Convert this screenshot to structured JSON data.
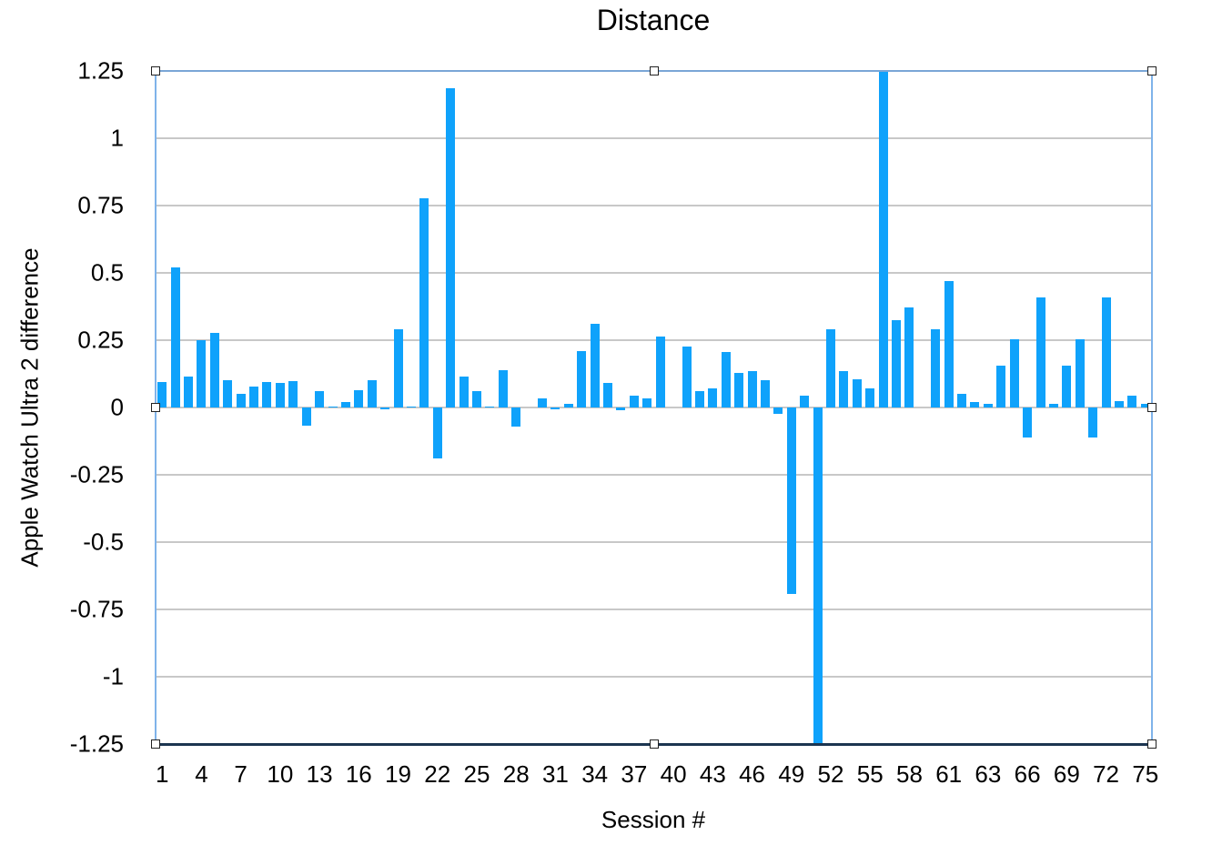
{
  "chart_data": {
    "type": "bar",
    "title": "Distance",
    "xlabel": "Session #",
    "ylabel": "Apple Watch Ultra 2 difference",
    "ylim": [
      -1.25,
      1.25
    ],
    "yticks": [
      "1.25",
      "1",
      "0.75",
      "0.5",
      "0.25",
      "0",
      "-0.25",
      "-0.5",
      "-0.75",
      "-1",
      "-1.25"
    ],
    "ytick_values": [
      1.25,
      1,
      0.75,
      0.5,
      0.25,
      0,
      -0.25,
      -0.5,
      -0.75,
      -1,
      -1.25
    ],
    "xtick_labels": [
      "1",
      "4",
      "7",
      "10",
      "13",
      "16",
      "19",
      "22",
      "25",
      "28",
      "31",
      "34",
      "37",
      "40",
      "43",
      "46",
      "49",
      "52",
      "55",
      "58",
      "61",
      "63",
      "66",
      "69",
      "72",
      "75"
    ],
    "grid": true,
    "legend": "none",
    "bar_color": "#0fa2fb",
    "categories": [
      "1",
      "2",
      "3",
      "4",
      "5",
      "6",
      "7",
      "8",
      "9",
      "10",
      "11",
      "12",
      "13",
      "14",
      "15",
      "16",
      "17",
      "18",
      "19",
      "20",
      "21",
      "22",
      "23",
      "24",
      "25",
      "26",
      "27",
      "28",
      "29",
      "30",
      "31",
      "32",
      "33",
      "34",
      "35",
      "36",
      "37",
      "38",
      "39",
      "40",
      "41",
      "42",
      "43",
      "44",
      "45",
      "46",
      "47",
      "48",
      "49",
      "50",
      "51",
      "52",
      "53",
      "54",
      "55",
      "56",
      "57",
      "58",
      "59",
      "60",
      "61",
      "61",
      "62",
      "63",
      "64",
      "65",
      "66",
      "67",
      "68",
      "69",
      "70",
      "71",
      "72",
      "73",
      "74",
      "75"
    ],
    "values": [
      0.095,
      0.52,
      0.115,
      0.25,
      0.277,
      0.1,
      0.05,
      0.078,
      0.095,
      0.09,
      0.098,
      -0.068,
      0.06,
      0.005,
      0.02,
      0.065,
      0.1,
      -0.005,
      0.29,
      0.005,
      0.777,
      -0.19,
      1.186,
      0.115,
      0.06,
      0.005,
      0.14,
      -0.07,
      0.0,
      0.035,
      -0.005,
      0.015,
      0.21,
      0.31,
      0.09,
      -0.01,
      0.045,
      0.035,
      0.265,
      0.0,
      0.225,
      0.06,
      0.072,
      0.205,
      0.13,
      0.135,
      0.1,
      -0.025,
      -0.693,
      0.045,
      -1.3,
      0.29,
      0.135,
      0.105,
      0.07,
      1.3,
      0.325,
      0.37,
      0.0,
      0.29,
      0.47,
      0.05,
      0.02,
      0.015,
      0.155,
      0.255,
      -0.11,
      0.41,
      0.015,
      0.155,
      0.255,
      -0.11,
      0.41,
      0.025,
      0.045,
      0.015
    ]
  }
}
